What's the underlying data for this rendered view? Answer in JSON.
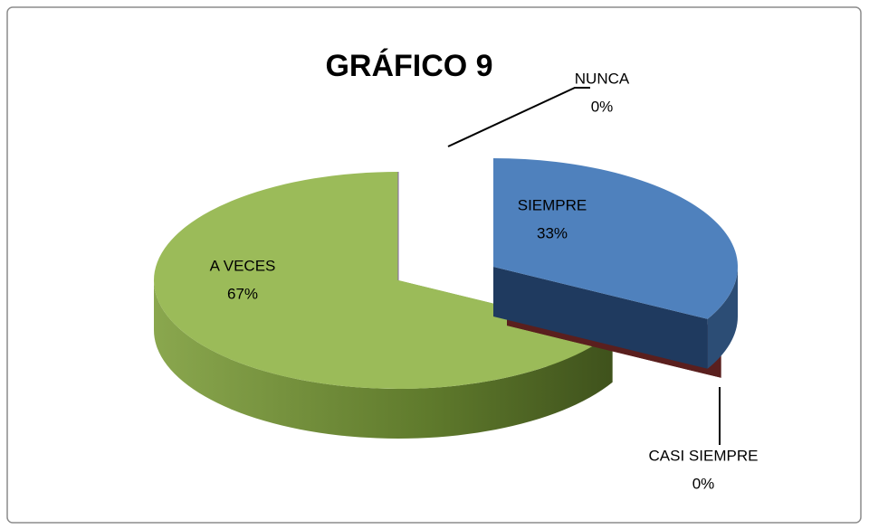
{
  "chart_data": {
    "type": "pie3d",
    "title": "GRÁFICO 9",
    "categories": [
      "SIEMPRE",
      "CASI SIEMPRE",
      "A VECES",
      "NUNCA"
    ],
    "values": [
      33,
      0,
      67,
      0
    ],
    "value_labels": [
      "33%",
      "0%",
      "67%",
      "0%"
    ],
    "colors": [
      "#4f81bd",
      "#c0504d",
      "#9bbb59",
      "#8064a2"
    ],
    "legend": false
  }
}
